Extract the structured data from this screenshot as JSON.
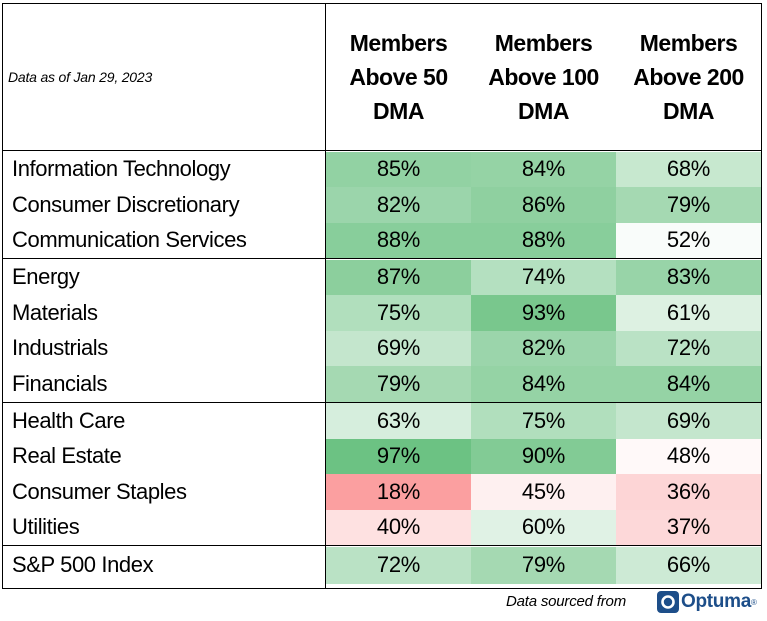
{
  "chart_data": {
    "type": "table",
    "as_of": "Data as of Jan 29, 2023",
    "columns": [
      "Members\nAbove 50\nDMA",
      "Members\nAbove 100\nDMA",
      "Members\nAbove 200\nDMA"
    ],
    "groups": [
      [
        {
          "label": "Information Technology",
          "values": [
            85,
            84,
            68
          ],
          "display": [
            "85%",
            "84%",
            "68%"
          ]
        },
        {
          "label": "Consumer Discretionary",
          "values": [
            82,
            86,
            79
          ],
          "display": [
            "82%",
            "86%",
            "79%"
          ]
        },
        {
          "label": "Communication Services",
          "values": [
            88,
            88,
            52
          ],
          "display": [
            "88%",
            "88%",
            "52%"
          ]
        }
      ],
      [
        {
          "label": "Energy",
          "values": [
            87,
            74,
            83
          ],
          "display": [
            "87%",
            "74%",
            "83%"
          ]
        },
        {
          "label": "Materials",
          "values": [
            75,
            93,
            61
          ],
          "display": [
            "75%",
            "93%",
            "61%"
          ]
        },
        {
          "label": "Industrials",
          "values": [
            69,
            82,
            72
          ],
          "display": [
            "69%",
            "82%",
            "72%"
          ]
        },
        {
          "label": "Financials",
          "values": [
            79,
            84,
            84
          ],
          "display": [
            "79%",
            "84%",
            "84%"
          ]
        }
      ],
      [
        {
          "label": "Health Care",
          "values": [
            63,
            75,
            69
          ],
          "display": [
            "63%",
            "75%",
            "69%"
          ]
        },
        {
          "label": "Real Estate",
          "values": [
            97,
            90,
            48
          ],
          "display": [
            "97%",
            "90%",
            "48%"
          ]
        },
        {
          "label": "Consumer Staples",
          "values": [
            18,
            45,
            36
          ],
          "display": [
            "18%",
            "45%",
            "36%"
          ]
        },
        {
          "label": "Utilities",
          "values": [
            40,
            60,
            37
          ],
          "display": [
            "40%",
            "60%",
            "37%"
          ]
        }
      ],
      [
        {
          "label": "S&P 500 Index",
          "values": [
            72,
            79,
            66
          ],
          "display": [
            "72%",
            "79%",
            "66%"
          ]
        }
      ]
    ],
    "color_scale": {
      "low": "#f8696b",
      "mid": "#ffffff",
      "high": "#63be7b",
      "midpoint": 50
    }
  },
  "footer": {
    "source_label": "Data sourced from",
    "logo_text": "Optuma",
    "logo_tm": "®"
  },
  "colors": {
    "logo": "#1d4e89"
  }
}
